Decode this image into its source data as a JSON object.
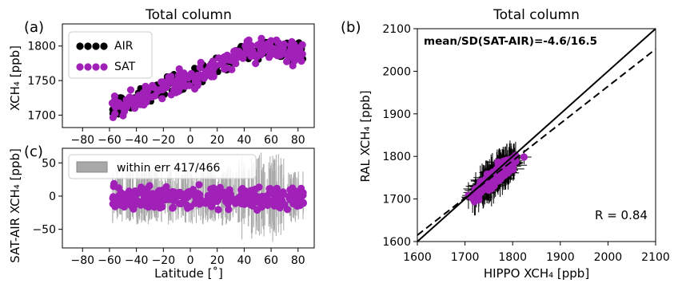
{
  "chart_data": [
    {
      "panel": "(a)",
      "type": "scatter",
      "title": "Total column",
      "xlabel": "",
      "ylabel": "XCH₄ [ppb]",
      "xlim": [
        -95,
        92
      ],
      "ylim": [
        1682,
        1832
      ],
      "xticks": [
        -80,
        -60,
        -40,
        -20,
        0,
        20,
        40,
        60,
        80
      ],
      "yticks": [
        1700,
        1750,
        1800
      ],
      "legend": "top-left",
      "series": [
        {
          "name": "AIR",
          "color": "#000000",
          "trend": [
            [
              -60,
              1712
            ],
            [
              -40,
              1722
            ],
            [
              -20,
              1740
            ],
            [
              0,
              1750
            ],
            [
              20,
              1772
            ],
            [
              40,
              1792
            ],
            [
              60,
              1798
            ],
            [
              85,
              1788
            ]
          ],
          "spread": 22
        },
        {
          "name": "SAT",
          "color": "#a020b8",
          "trend": [
            [
              -60,
              1712
            ],
            [
              -40,
              1722
            ],
            [
              -20,
              1740
            ],
            [
              0,
              1750
            ],
            [
              20,
              1772
            ],
            [
              40,
              1792
            ],
            [
              60,
              1798
            ],
            [
              85,
              1788
            ]
          ],
          "spread": 26
        }
      ]
    },
    {
      "panel": "(c)",
      "type": "scatter",
      "title": "",
      "xlabel": "Latitude [˚]",
      "ylabel": "SAT-AIR XCH₄ [ppb]",
      "xlim": [
        -95,
        92
      ],
      "ylim": [
        -78,
        72
      ],
      "xticks": [
        -80,
        -60,
        -40,
        -20,
        0,
        20,
        40,
        60,
        80
      ],
      "yticks": [
        -50,
        0,
        50
      ],
      "legend": "top-left",
      "series": [
        {
          "name": "within err 417/466",
          "color": "#a8a8a8",
          "kind": "error-band"
        },
        {
          "name": "",
          "color": "#a020b8",
          "kind": "points",
          "spread": 22
        }
      ]
    },
    {
      "panel": "(b)",
      "type": "scatter",
      "title": "Total column",
      "xlabel": "HIPPO XCH₄ [ppb]",
      "ylabel": "RAL XCH₄ [ppb]",
      "xlim": [
        1600,
        2100
      ],
      "ylim": [
        1600,
        2100
      ],
      "xticks": [
        1600,
        1700,
        1800,
        1900,
        2000,
        2100
      ],
      "yticks": [
        1600,
        1700,
        1800,
        1900,
        2000,
        2100
      ],
      "annotations": [
        "mean/SD(SAT-AIR)=-4.6/16.5",
        "R = 0.84"
      ],
      "lines": [
        {
          "kind": "1:1",
          "style": "solid",
          "from": [
            1600,
            1600
          ],
          "to": [
            2100,
            2100
          ]
        },
        {
          "kind": "fit",
          "style": "dashed",
          "from": [
            1600,
            1615
          ],
          "to": [
            2100,
            2052
          ]
        }
      ],
      "series": [
        {
          "name": "",
          "color": "#a020b8",
          "center": [
            1765,
            1752
          ],
          "spread": 40
        }
      ]
    }
  ],
  "labels": {
    "a": "(a)",
    "b": "(b)",
    "c": "(c)"
  },
  "colors": {
    "air": "#000000",
    "sat": "#a020b8",
    "band": "#a8a8a8"
  }
}
